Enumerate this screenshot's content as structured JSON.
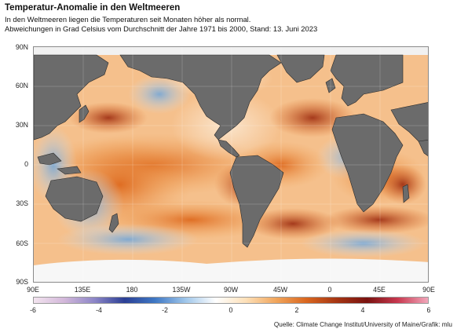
{
  "header": {
    "title": "Temperatur-Anomalie in den Weltmeeren",
    "subtitle_line1": "In den Weltmeeren liegen die Temperaturen seit Monaten höher als normal.",
    "subtitle_line2": "Abweichungen in Grad Celsius vom Durchschnitt der Jahre 1971 bis 2000, Stand: 13. Juni 2023"
  },
  "map": {
    "lat_labels": [
      "90N",
      "60N",
      "30N",
      "0",
      "30S",
      "60S",
      "90S"
    ],
    "lon_labels": [
      "90E",
      "135E",
      "180",
      "135W",
      "90W",
      "45W",
      "0",
      "45E",
      "90E"
    ],
    "land_color": "#6b6b6b",
    "border_color": "#2a2a2a",
    "ice_color": "#f7f7f7"
  },
  "legend": {
    "ticks": [
      "-6",
      "-4",
      "-2",
      "0",
      "2",
      "4",
      "6"
    ],
    "range": [
      -6,
      6
    ],
    "colors": [
      "#f3e4ef",
      "#d3b8da",
      "#8d86c7",
      "#2b3f95",
      "#3f78c4",
      "#9fc6ea",
      "#ffffff",
      "#fde0b8",
      "#f1a55b",
      "#d9661f",
      "#a53513",
      "#7a1210",
      "#c8384f",
      "#f2a7bb"
    ]
  },
  "source": "Quelle: Climate Change Institut/University of Maine/Grafik: mlu"
}
